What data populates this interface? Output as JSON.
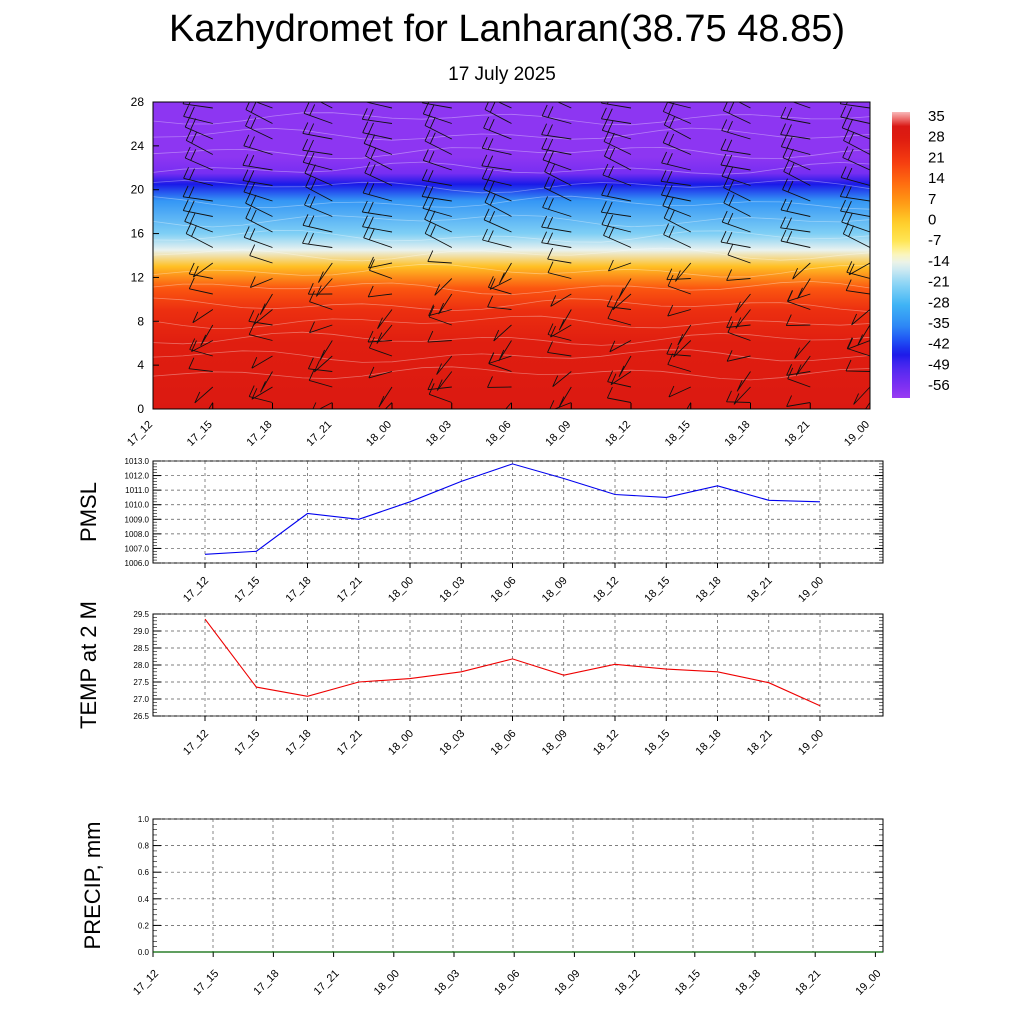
{
  "header": {
    "title": "Kazhydromet for Lanharan(38.75 48.85)",
    "date": "17 July 2025"
  },
  "chart_data": [
    {
      "type": "heatmap",
      "title": "",
      "x": [
        "17_12",
        "17_15",
        "17_18",
        "17_21",
        "18_00",
        "18_03",
        "18_06",
        "18_09",
        "18_12",
        "18_15",
        "18_18",
        "18_21",
        "19_00"
      ],
      "y_ticks": [
        0,
        4,
        8,
        12,
        16,
        20,
        24,
        28
      ],
      "ylim": [
        0,
        28
      ],
      "colorbar_labels": [
        35,
        28,
        21,
        14,
        7,
        0,
        -7,
        -14,
        -21,
        -28,
        -35,
        -42,
        -49,
        -56
      ],
      "colorbar_range": [
        -60,
        38
      ],
      "wind_barbs": true,
      "profile": [
        {
          "level": 0,
          "value": 31
        },
        {
          "level": 6,
          "value": 28
        },
        {
          "level": 9,
          "value": 24
        },
        {
          "level": 11,
          "value": 17
        },
        {
          "level": 13,
          "value": 2
        },
        {
          "level": 14.5,
          "value": -14
        },
        {
          "level": 16,
          "value": -22
        },
        {
          "level": 19,
          "value": -33
        },
        {
          "level": 20.5,
          "value": -45
        },
        {
          "level": 21.5,
          "value": -55
        },
        {
          "level": 23,
          "value": -58
        },
        {
          "level": 28,
          "value": -58
        }
      ],
      "colors": {
        "hot": "#dd1111",
        "cold": "#7a2cf0"
      }
    },
    {
      "type": "line",
      "ylabel": "PMSL",
      "x": [
        "17_12",
        "17_15",
        "17_18",
        "17_21",
        "18_00",
        "18_03",
        "18_06",
        "18_09",
        "18_12",
        "18_15",
        "18_18",
        "18_21",
        "19_00"
      ],
      "y_ticks": [
        "1006.0",
        "1007.0",
        "1008.0",
        "1009.0",
        "1010.0",
        "1011.0",
        "1012.0",
        "1013.0"
      ],
      "ylim": [
        1006.0,
        1013.0
      ],
      "series": [
        {
          "values": [
            1006.6,
            1006.8,
            1009.4,
            1009.0,
            1010.2,
            1011.6,
            1012.8,
            1011.8,
            1010.7,
            1010.5,
            1011.3,
            1010.3,
            1010.2
          ],
          "color": "#0000ee"
        }
      ],
      "grid": true
    },
    {
      "type": "line",
      "ylabel": "TEMP at 2 M",
      "x": [
        "17_12",
        "17_15",
        "17_18",
        "17_21",
        "18_00",
        "18_03",
        "18_06",
        "18_09",
        "18_12",
        "18_15",
        "18_18",
        "18_21",
        "19_00"
      ],
      "y_ticks": [
        "26.5",
        "27.0",
        "27.5",
        "28.0",
        "28.5",
        "29.0",
        "29.5"
      ],
      "ylim": [
        26.5,
        29.5
      ],
      "series": [
        {
          "values": [
            29.35,
            27.35,
            27.08,
            27.5,
            27.6,
            27.8,
            28.18,
            27.7,
            28.02,
            27.88,
            27.8,
            27.48,
            26.8
          ],
          "color": "#ee0000"
        }
      ],
      "grid": true
    },
    {
      "type": "line",
      "ylabel": "PRECIP, mm",
      "x": [
        "17_12",
        "17_15",
        "17_18",
        "17_21",
        "18_00",
        "18_03",
        "18_06",
        "18_09",
        "18_12",
        "18_15",
        "18_18",
        "18_21",
        "19_00"
      ],
      "y_ticks": [
        "0.0",
        "0.2",
        "0.4",
        "0.6",
        "0.8",
        "1.0"
      ],
      "ylim": [
        0,
        1.0
      ],
      "series": [
        {
          "values": [
            0,
            0,
            0,
            0,
            0,
            0,
            0,
            0,
            0,
            0,
            0,
            0,
            0
          ],
          "color": "#006600"
        }
      ],
      "grid": true
    }
  ]
}
